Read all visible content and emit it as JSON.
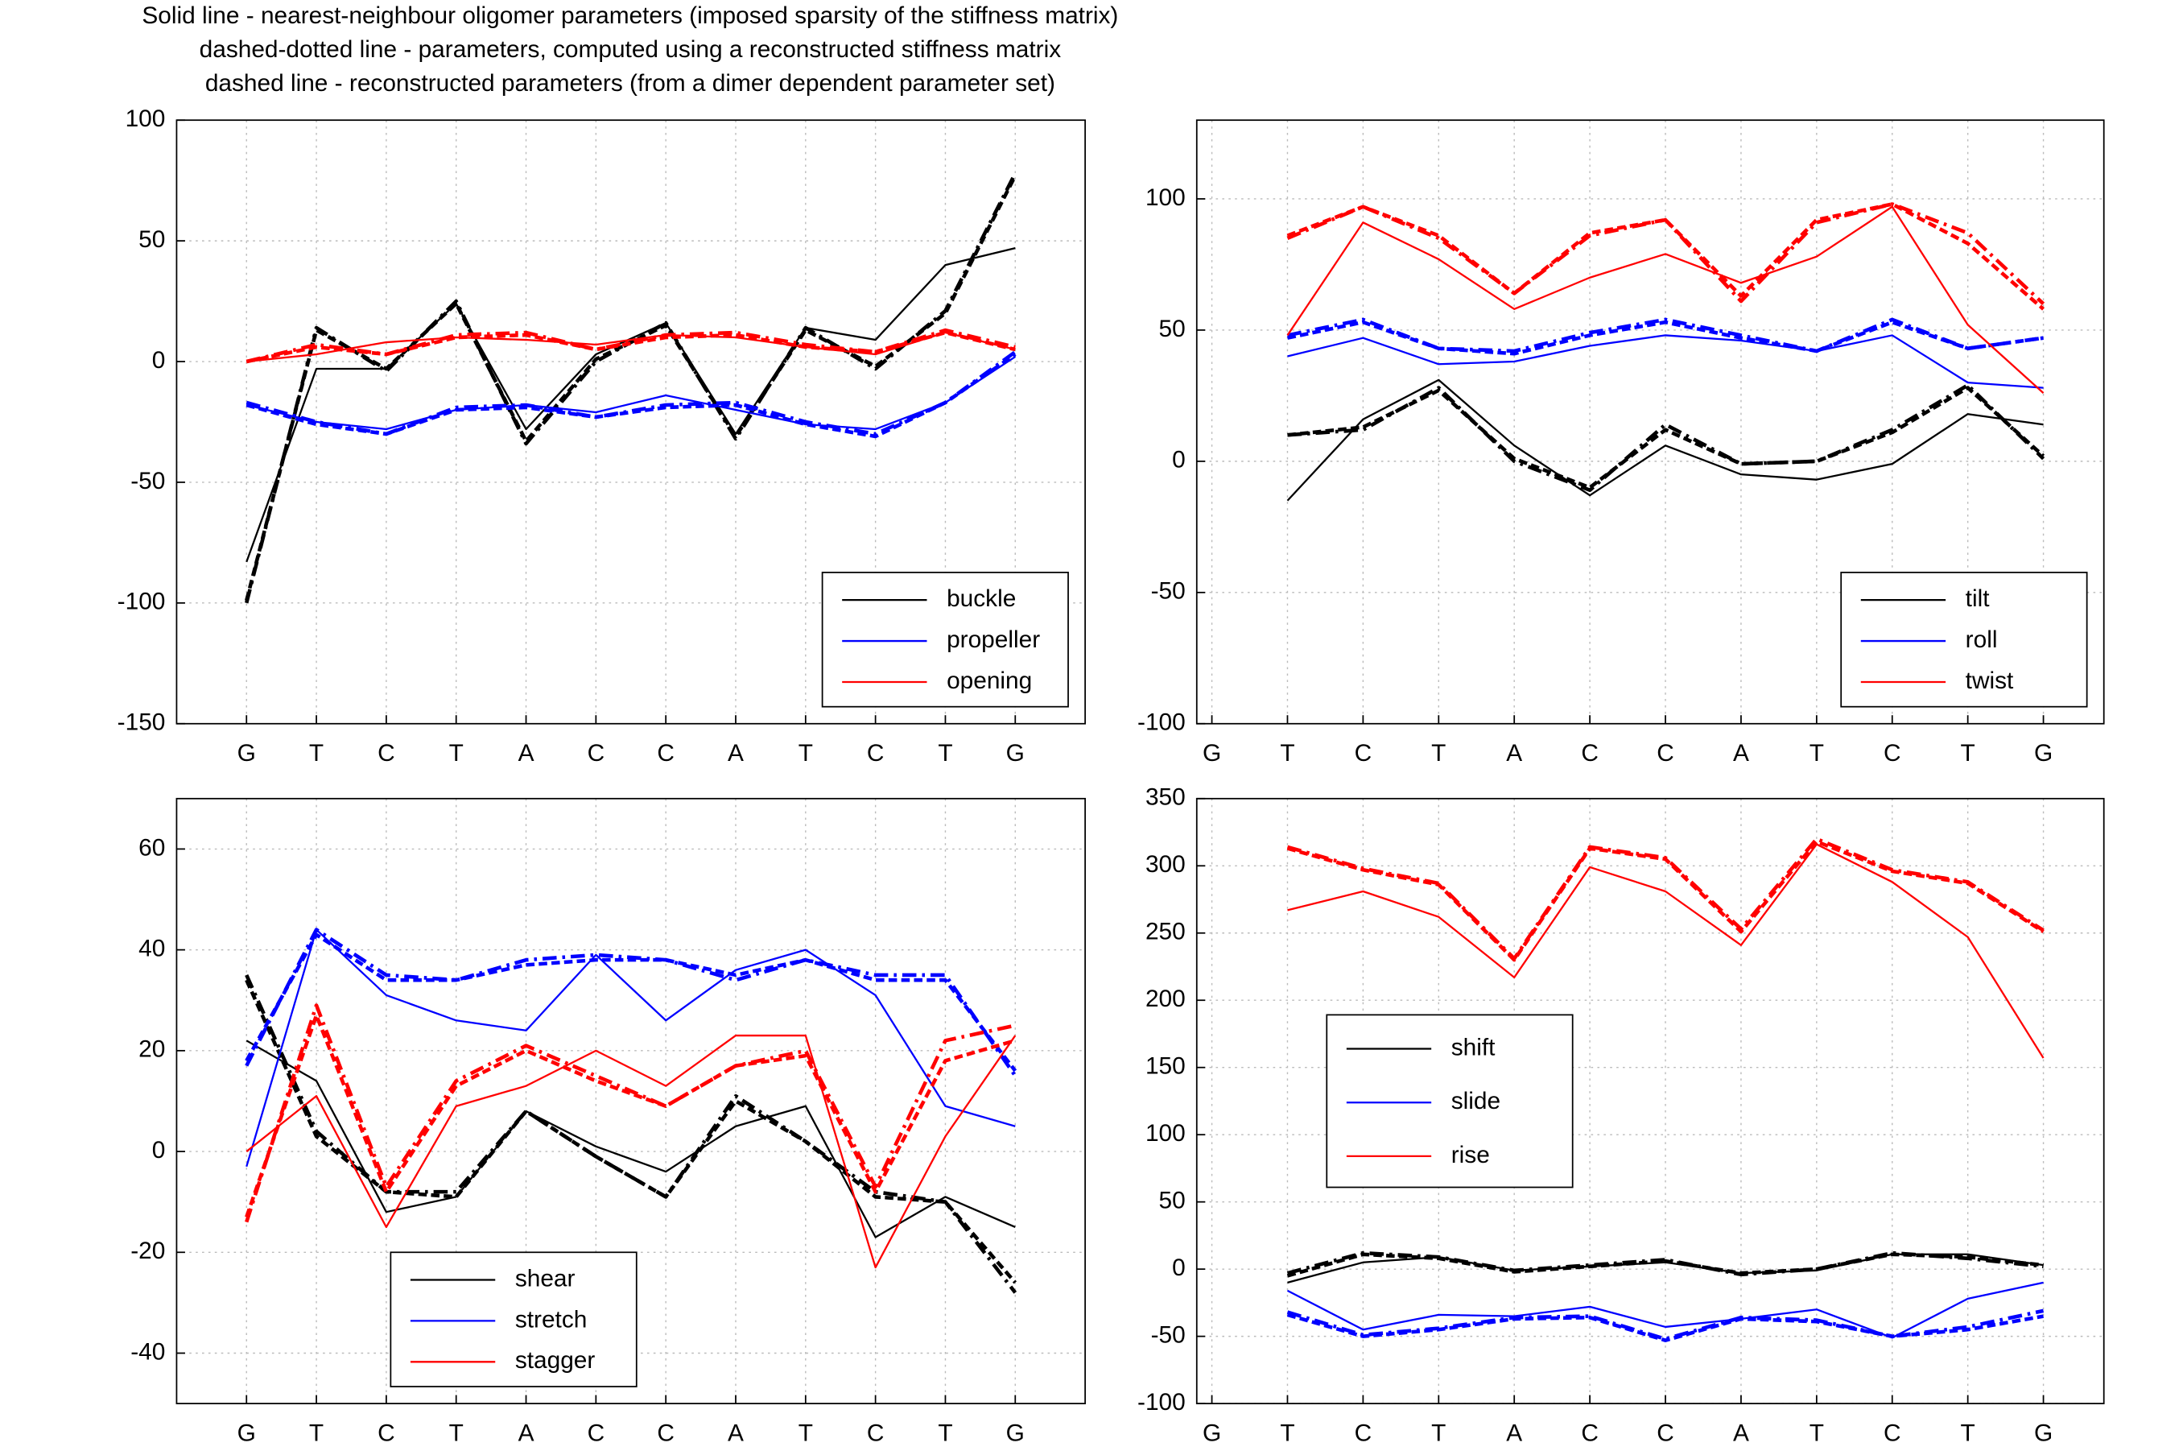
{
  "figure_title": [
    "Solid line - nearest-neighbour oligomer parameters (imposed sparsity of the stiffness matrix)",
    "dashed-dotted line - parameters, computed using a reconstructed stiffness matrix",
    "dashed line - reconstructed parameters (from a dimer dependent parameter set)"
  ],
  "chart_data": [
    {
      "type": "line",
      "categories": [
        "G",
        "T",
        "C",
        "T",
        "A",
        "C",
        "C",
        "A",
        "T",
        "C",
        "T",
        "G"
      ],
      "xlim": [
        0,
        13
      ],
      "ylim": [
        -150,
        100
      ],
      "yticks": [
        -150,
        -100,
        -50,
        0,
        50,
        100
      ],
      "grid": true,
      "legend": "lower right",
      "series": [
        {
          "name": "buckle",
          "color": "#000000",
          "solid": [
            -83,
            -3,
            -3,
            24,
            -28,
            3,
            16,
            -30,
            14,
            9,
            40,
            47
          ],
          "dashdot": [
            -100,
            14,
            -4,
            25,
            -34,
            0,
            16,
            -32,
            14,
            -3,
            21,
            78
          ],
          "dashed": [
            -99,
            13,
            -3,
            24,
            -33,
            1,
            15,
            -31,
            13,
            -2,
            20,
            77
          ]
        },
        {
          "name": "propeller",
          "color": "#0000ff",
          "solid": [
            -18,
            -25,
            -28,
            -20,
            -18,
            -21,
            -14,
            -20,
            -26,
            -28,
            -17,
            2
          ],
          "dashdot": [
            -17,
            -25,
            -30,
            -19,
            -18,
            -23,
            -18,
            -17,
            -25,
            -30,
            -17,
            4
          ],
          "dashed": [
            -18,
            -26,
            -30,
            -20,
            -19,
            -23,
            -19,
            -18,
            -26,
            -31,
            -17,
            3
          ]
        },
        {
          "name": "opening",
          "color": "#ff0000",
          "solid": [
            0,
            3,
            8,
            10,
            9,
            7,
            11,
            10,
            6,
            3,
            12,
            5
          ],
          "dashdot": [
            0,
            7,
            3,
            11,
            12,
            5,
            11,
            12,
            7,
            4,
            13,
            6
          ],
          "dashed": [
            0,
            6,
            3,
            10,
            11,
            5,
            10,
            11,
            6,
            4,
            12,
            5
          ]
        }
      ]
    },
    {
      "type": "line",
      "categories": [
        "G",
        "T",
        "C",
        "T",
        "A",
        "C",
        "C",
        "A",
        "T",
        "C",
        "T",
        "G"
      ],
      "xlim": [
        0.8,
        12.8
      ],
      "ylim": [
        -100,
        130
      ],
      "yticks": [
        -100,
        -50,
        0,
        50,
        100
      ],
      "grid": true,
      "legend": "lower right",
      "series": [
        {
          "name": "tilt",
          "color": "#000000",
          "solid": [
            null,
            -15,
            16,
            31,
            6,
            -13,
            6,
            -5,
            -7,
            -1,
            18,
            14
          ],
          "dashdot": [
            null,
            10,
            12,
            28,
            0,
            -11,
            14,
            -1,
            0,
            12,
            29,
            1
          ],
          "dashed": [
            null,
            10,
            13,
            27,
            1,
            -10,
            12,
            -1,
            0,
            11,
            28,
            2
          ]
        },
        {
          "name": "roll",
          "color": "#0000ff",
          "solid": [
            null,
            40,
            47,
            37,
            38,
            44,
            48,
            46,
            42,
            48,
            30,
            28
          ],
          "dashdot": [
            null,
            48,
            54,
            43,
            42,
            49,
            54,
            48,
            42,
            54,
            43,
            47
          ],
          "dashed": [
            null,
            47,
            53,
            43,
            41,
            48,
            53,
            47,
            42,
            53,
            43,
            47
          ]
        },
        {
          "name": "twist",
          "color": "#ff0000",
          "solid": [
            null,
            48,
            91,
            77,
            58,
            70,
            79,
            68,
            78,
            97,
            52,
            26
          ],
          "dashdot": [
            null,
            85,
            97,
            85,
            64,
            86,
            92,
            61,
            91,
            98,
            87,
            60
          ],
          "dashed": [
            null,
            86,
            97,
            86,
            64,
            87,
            92,
            63,
            92,
            98,
            83,
            58
          ]
        }
      ]
    },
    {
      "type": "line",
      "categories": [
        "G",
        "T",
        "C",
        "T",
        "A",
        "C",
        "C",
        "A",
        "T",
        "C",
        "T",
        "G"
      ],
      "xlim": [
        0,
        13
      ],
      "ylim": [
        -50,
        70
      ],
      "yticks": [
        -40,
        -20,
        0,
        20,
        40,
        60
      ],
      "grid": true,
      "legend": "lower center",
      "series": [
        {
          "name": "shear",
          "color": "#000000",
          "solid": [
            22,
            14,
            -12,
            -9,
            8,
            1,
            -4,
            5,
            9,
            -17,
            -9,
            -15
          ],
          "dashdot": [
            35,
            4,
            -8,
            -8,
            8,
            -1,
            -9,
            11,
            2,
            -8,
            -10,
            -28
          ],
          "dashed": [
            34,
            3,
            -8,
            -9,
            8,
            -1,
            -9,
            10,
            2,
            -9,
            -10,
            -26
          ]
        },
        {
          "name": "stretch",
          "color": "#0000ff",
          "solid": [
            -3,
            44,
            31,
            26,
            24,
            39,
            26,
            36,
            40,
            31,
            9,
            5
          ],
          "dashdot": [
            17,
            44,
            35,
            34,
            38,
            39,
            38,
            34,
            38,
            35,
            35,
            15
          ],
          "dashed": [
            18,
            43,
            34,
            34,
            37,
            38,
            38,
            35,
            38,
            34,
            34,
            16
          ]
        },
        {
          "name": "stagger",
          "color": "#ff0000",
          "solid": [
            0,
            11,
            -15,
            9,
            13,
            20,
            13,
            23,
            23,
            -23,
            3,
            23
          ],
          "dashdot": [
            -14,
            29,
            -7,
            14,
            21,
            15,
            9,
            17,
            20,
            -7,
            22,
            25
          ],
          "dashed": [
            -13,
            27,
            -8,
            13,
            20,
            14,
            9,
            17,
            19,
            -8,
            18,
            22
          ]
        }
      ]
    },
    {
      "type": "line",
      "categories": [
        "G",
        "T",
        "C",
        "T",
        "A",
        "C",
        "C",
        "A",
        "T",
        "C",
        "T",
        "G"
      ],
      "xlim": [
        0.8,
        12.8
      ],
      "ylim": [
        -100,
        350
      ],
      "yticks": [
        -100,
        -50,
        0,
        50,
        100,
        150,
        200,
        250,
        300,
        350
      ],
      "grid": true,
      "legend": "center",
      "series": [
        {
          "name": "shift",
          "color": "#000000",
          "solid": [
            null,
            -10,
            5,
            9,
            -1,
            2,
            5,
            -3,
            -1,
            11,
            11,
            3
          ],
          "dashdot": [
            null,
            -3,
            12,
            9,
            -1,
            3,
            7,
            -4,
            0,
            12,
            8,
            2
          ],
          "dashed": [
            null,
            -5,
            11,
            8,
            -2,
            2,
            6,
            -3,
            0,
            11,
            9,
            3
          ]
        },
        {
          "name": "slide",
          "color": "#0000ff",
          "solid": [
            null,
            -16,
            -45,
            -34,
            -35,
            -28,
            -43,
            -37,
            -30,
            -51,
            -22,
            -10
          ],
          "dashdot": [
            null,
            -32,
            -49,
            -44,
            -36,
            -35,
            -52,
            -36,
            -38,
            -50,
            -43,
            -31
          ],
          "dashed": [
            null,
            -34,
            -50,
            -45,
            -37,
            -36,
            -53,
            -37,
            -39,
            -50,
            -45,
            -35
          ]
        },
        {
          "name": "rise",
          "color": "#ff0000",
          "solid": [
            null,
            267,
            281,
            262,
            217,
            299,
            281,
            241,
            316,
            288,
            247,
            157
          ],
          "dashdot": [
            null,
            314,
            298,
            287,
            231,
            314,
            306,
            253,
            320,
            297,
            288,
            252
          ],
          "dashed": [
            null,
            313,
            297,
            286,
            230,
            313,
            305,
            251,
            318,
            296,
            287,
            251
          ]
        }
      ]
    }
  ]
}
